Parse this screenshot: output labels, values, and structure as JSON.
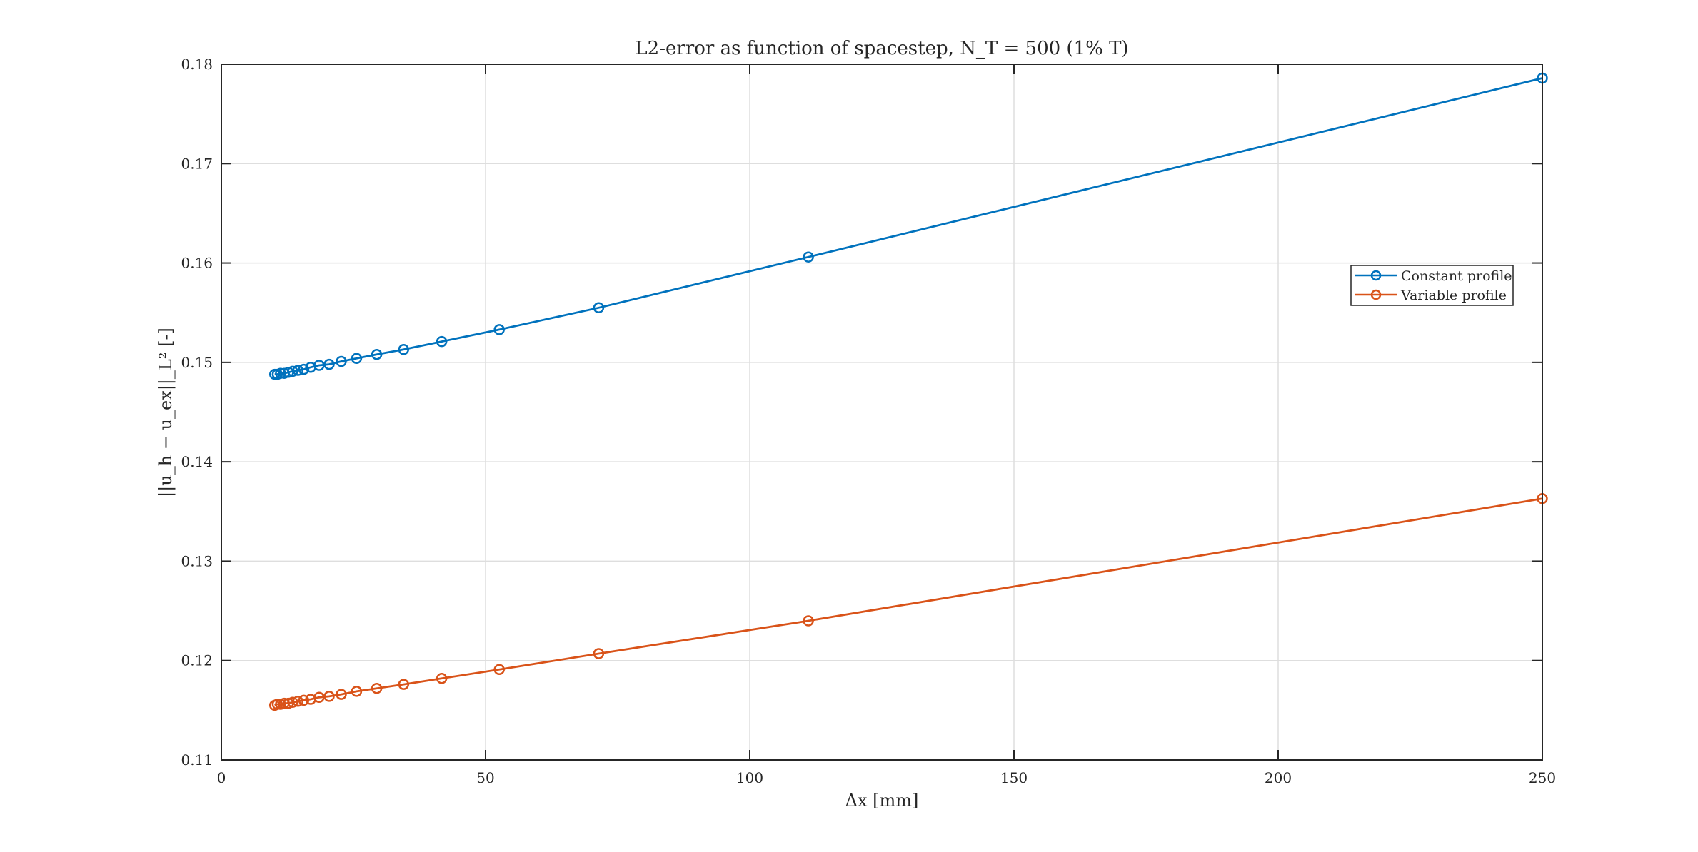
{
  "chart_data": {
    "type": "line",
    "title": "L2-error as function of spacestep, N_T = 500 (1% T)",
    "xlabel": "Δx [mm]",
    "ylabel": "||u_h − u_ex||_L² [-]",
    "xlim": [
      0,
      250
    ],
    "ylim": [
      0.11,
      0.18
    ],
    "xticks": [
      0,
      50,
      100,
      150,
      200,
      250
    ],
    "yticks": [
      0.11,
      0.12,
      0.13,
      0.14,
      0.15,
      0.16,
      0.17,
      0.18
    ],
    "xtick_labels": [
      "0",
      "50",
      "100",
      "150",
      "200",
      "250"
    ],
    "ytick_labels": [
      "0.11",
      "0.12",
      "0.13",
      "0.14",
      "0.15",
      "0.16",
      "0.17",
      "0.18"
    ],
    "grid": true,
    "legend_position": "right",
    "series": [
      {
        "name": "Constant profile",
        "color": "#0072BD",
        "marker": "circle",
        "x": [
          250,
          111.1,
          71.4,
          52.6,
          41.7,
          34.5,
          29.4,
          25.6,
          22.7,
          20.4,
          18.5,
          16.9,
          15.6,
          14.5,
          13.5,
          12.7,
          11.9,
          11.2,
          10.6,
          10.1
        ],
        "y": [
          0.1786,
          0.1606,
          0.1555,
          0.1533,
          0.1521,
          0.1513,
          0.1508,
          0.1504,
          0.1501,
          0.1498,
          0.1497,
          0.1495,
          0.1493,
          0.1492,
          0.1491,
          0.149,
          0.1489,
          0.1489,
          0.1488,
          0.1488
        ]
      },
      {
        "name": "Variable profile",
        "color": "#D95319",
        "marker": "circle",
        "x": [
          250,
          111.1,
          71.4,
          52.6,
          41.7,
          34.5,
          29.4,
          25.6,
          22.7,
          20.4,
          18.5,
          16.9,
          15.6,
          14.5,
          13.5,
          12.7,
          11.9,
          11.2,
          10.6,
          10.1
        ],
        "y": [
          0.1363,
          0.124,
          0.1207,
          0.1191,
          0.1182,
          0.1176,
          0.1172,
          0.1169,
          0.1166,
          0.1164,
          0.1163,
          0.1161,
          0.116,
          0.1159,
          0.1158,
          0.1157,
          0.1157,
          0.1156,
          0.1156,
          0.1155
        ]
      }
    ]
  }
}
